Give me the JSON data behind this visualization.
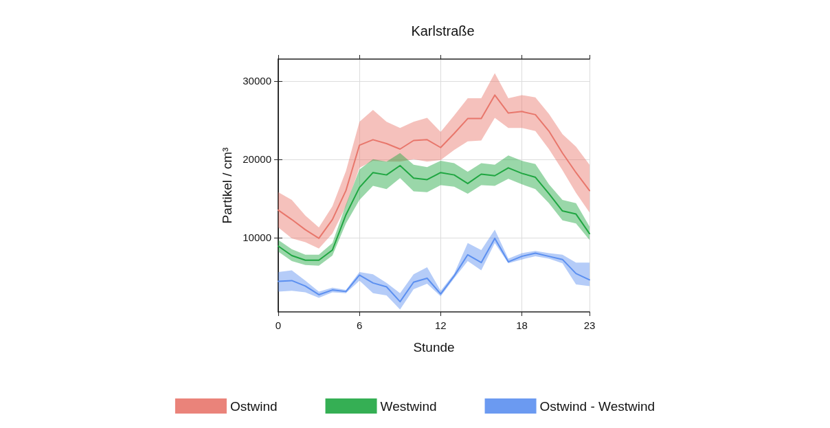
{
  "chart_data": {
    "type": "line",
    "title": "Karlstraße",
    "xlabel": "Stunde",
    "ylabel": "Partikel / cm³",
    "x": [
      0,
      1,
      2,
      3,
      4,
      5,
      6,
      7,
      8,
      9,
      10,
      11,
      12,
      13,
      14,
      15,
      16,
      17,
      18,
      19,
      20,
      21,
      22,
      23
    ],
    "xlim": [
      0,
      23
    ],
    "xticks": [
      0,
      6,
      12,
      18,
      23
    ],
    "ylim": [
      500,
      32800
    ],
    "yticks": [
      10000,
      20000,
      30000
    ],
    "grid": true,
    "legend": "bottom",
    "line_style": "solid",
    "marker": "none",
    "series": [
      {
        "name": "Ostwind",
        "color": "#e8766b",
        "values": [
          13500,
          12300,
          11000,
          9900,
          12300,
          16000,
          21800,
          22500,
          22000,
          21300,
          22400,
          22500,
          21500,
          23300,
          25200,
          25200,
          28200,
          25900,
          26100,
          25700,
          23600,
          20800,
          18300,
          16000
        ],
        "lower": [
          11300,
          9900,
          9400,
          8600,
          10500,
          14000,
          18900,
          19800,
          19700,
          19700,
          20000,
          19700,
          19900,
          21200,
          22300,
          22400,
          25300,
          24000,
          24000,
          23600,
          21300,
          18600,
          15700,
          13200
        ],
        "upper": [
          15800,
          14800,
          12800,
          11300,
          14000,
          18500,
          24800,
          26300,
          24800,
          24000,
          24800,
          25300,
          23500,
          25600,
          27800,
          27800,
          31000,
          27800,
          28200,
          27900,
          25800,
          23200,
          21600,
          19300
        ]
      },
      {
        "name": "Westwind",
        "color": "#1fa641",
        "values": [
          8900,
          7700,
          7100,
          7100,
          8400,
          12900,
          16400,
          18300,
          18000,
          19200,
          17600,
          17400,
          18300,
          18000,
          16900,
          18100,
          17900,
          18900,
          18200,
          17700,
          15600,
          13400,
          13000,
          10500
        ],
        "lower": [
          8200,
          7000,
          6500,
          6400,
          7700,
          11800,
          14800,
          16600,
          16200,
          17600,
          15900,
          15800,
          16700,
          16500,
          15600,
          16700,
          16600,
          17500,
          16800,
          16200,
          14400,
          12200,
          11800,
          9700
        ],
        "upper": [
          9700,
          8500,
          7800,
          7800,
          9300,
          14200,
          18700,
          20000,
          19700,
          20800,
          19300,
          19000,
          19800,
          19500,
          18400,
          19500,
          19300,
          20500,
          19800,
          19400,
          16800,
          14800,
          14400,
          11400
        ]
      },
      {
        "name": "Ostwind - Westwind",
        "color": "#5b8ff0",
        "values": [
          4400,
          4500,
          3800,
          2700,
          3300,
          3100,
          5200,
          4200,
          3700,
          1800,
          4300,
          4800,
          2800,
          5100,
          7800,
          6800,
          9900,
          6900,
          7600,
          8000,
          7600,
          7200,
          5400,
          4600
        ],
        "lower": [
          3100,
          3200,
          3000,
          2300,
          3000,
          2900,
          4500,
          2900,
          2600,
          800,
          3400,
          4100,
          2500,
          4800,
          7000,
          5800,
          9300,
          6700,
          7200,
          7600,
          7300,
          6700,
          4000,
          3800
        ],
        "upper": [
          5600,
          5800,
          4500,
          3100,
          3600,
          3300,
          5600,
          5300,
          4200,
          2900,
          5300,
          6200,
          3200,
          5400,
          9300,
          8400,
          11000,
          7300,
          8000,
          8300,
          8000,
          7800,
          6800,
          6800
        ]
      }
    ]
  }
}
